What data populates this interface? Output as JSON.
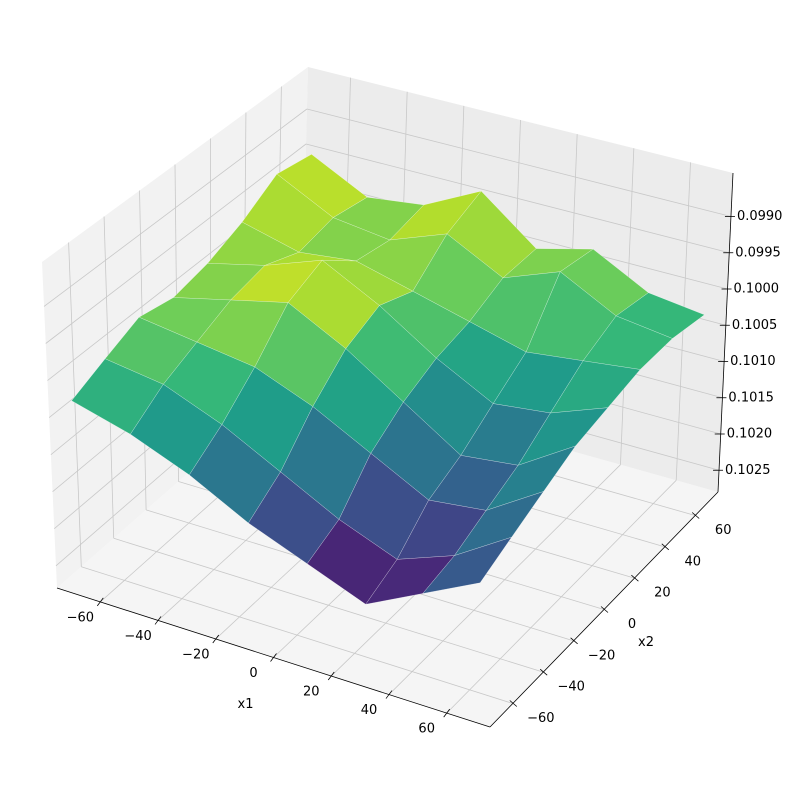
{
  "chart_data": {
    "type": "surface3d",
    "xlabel": "x1",
    "ylabel": "x2",
    "colormap": "viridis",
    "x": [
      -70,
      -50,
      -30,
      -10,
      10,
      30,
      50,
      70
    ],
    "y": [
      -70,
      -50,
      -30,
      -10,
      10,
      30,
      50,
      70
    ],
    "z": [
      [
        0.1003,
        0.1005,
        0.1008,
        0.1012,
        0.1015,
        0.1018,
        0.1014,
        0.101
      ],
      [
        0.1001,
        0.1002,
        0.1005,
        0.1009,
        0.1013,
        0.1016,
        0.1013,
        0.1008
      ],
      [
        0.0999,
        0.1,
        0.1001,
        0.1004,
        0.1008,
        0.1012,
        0.1011,
        0.1006
      ],
      [
        0.1,
        0.0998,
        0.0996,
        0.1,
        0.1005,
        0.101,
        0.1009,
        0.1004
      ],
      [
        0.0999,
        0.0997,
        0.0994,
        0.0998,
        0.1003,
        0.1007,
        0.1006,
        0.1003
      ],
      [
        0.0997,
        0.0999,
        0.0998,
        0.1,
        0.1002,
        0.1004,
        0.1003,
        0.1002
      ],
      [
        0.0994,
        0.0998,
        0.0999,
        0.0996,
        0.1,
        0.0997,
        0.1001,
        0.1002
      ],
      [
        0.0995,
        0.0999,
        0.0998,
        0.0994,
        0.1,
        0.0998,
        0.1002,
        0.1003
      ]
    ],
    "xlim": [
      -75,
      75
    ],
    "ylim": [
      -75,
      75
    ],
    "zlim": [
      0.1028,
      0.0984
    ],
    "xticks": [
      {
        "value": -60,
        "label": "−60"
      },
      {
        "value": -40,
        "label": "−40"
      },
      {
        "value": -20,
        "label": "−20"
      },
      0,
      20,
      40,
      60
    ],
    "yticks": [
      {
        "value": -60,
        "label": "−60"
      },
      {
        "value": -40,
        "label": "−40"
      },
      {
        "value": -20,
        "label": "−20"
      },
      0,
      20,
      40,
      60
    ],
    "zticks": [
      {
        "value": 0.099,
        "label": "0.0990"
      },
      0.0995,
      {
        "value": 0.1,
        "label": "0.1000"
      },
      0.1005,
      {
        "value": 0.101,
        "label": "0.1010"
      },
      0.1015,
      {
        "value": 0.102,
        "label": "0.1020"
      },
      0.1025
    ],
    "grid": true
  }
}
